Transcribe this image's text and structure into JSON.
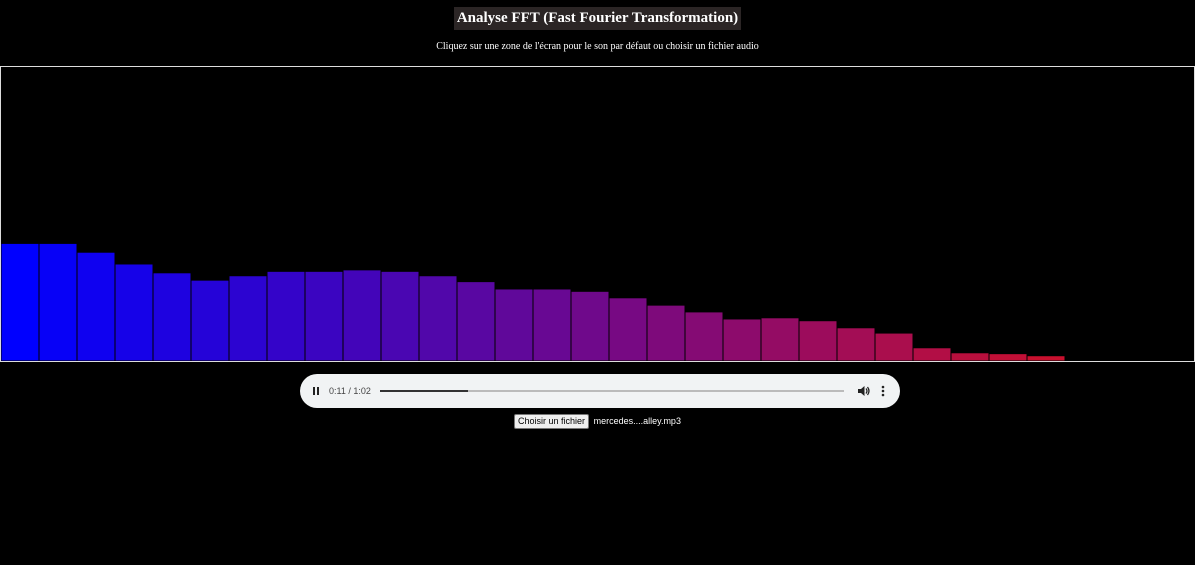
{
  "header": {
    "title": "Analyse FFT (Fast Fourier Transformation)",
    "subtitle": "Cliquez sur une zone de l'écran pour le son par défaut ou choisir un fichier audio"
  },
  "visualizer": {
    "levels": [
      0.4,
      0.4,
      0.37,
      0.33,
      0.3,
      0.275,
      0.29,
      0.305,
      0.305,
      0.31,
      0.305,
      0.29,
      0.27,
      0.245,
      0.245,
      0.237,
      0.215,
      0.19,
      0.167,
      0.143,
      0.147,
      0.137,
      0.113,
      0.095,
      0.045,
      0.028,
      0.025,
      0.018
    ],
    "color_start": "#0000ff",
    "color_end": "#c8102e"
  },
  "audio": {
    "time": "0:11 / 1:02",
    "progress": 0.19,
    "pause_icon": "pause-icon",
    "volume_icon": "volume-icon",
    "menu_icon": "more-vert-icon"
  },
  "file_input": {
    "button_label": "Choisir un fichier",
    "file_name": "mercedes....alley.mp3"
  }
}
